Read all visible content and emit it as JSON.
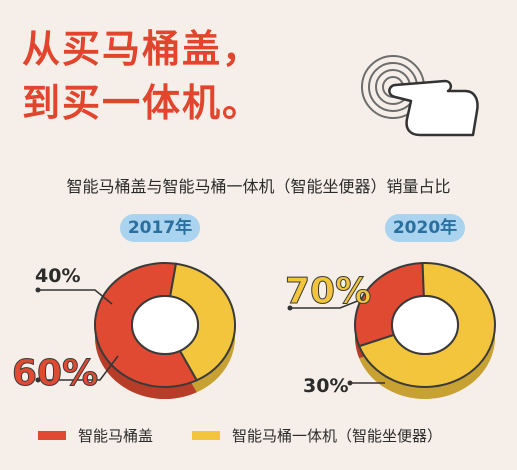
{
  "headline": {
    "line1": "从买马桶盖，",
    "line2": "到买一体机。"
  },
  "subtitle": "智能马桶盖与智能马桶一体机（智能坐便器）销量占比",
  "legend": [
    {
      "label": "智能马桶盖",
      "color": "#e04a32"
    },
    {
      "label": "智能马桶一体机（智能坐便器）",
      "color": "#f3c53d"
    }
  ],
  "colors": {
    "accent": "#e2452e",
    "cover": "#e04a32",
    "integrated": "#f3c53d",
    "badge": "#a9d3ee"
  },
  "chart_data": [
    {
      "type": "pie",
      "title": "2017年",
      "categories": [
        "智能马桶盖",
        "智能马桶一体机（智能坐便器）"
      ],
      "values": [
        60,
        40
      ],
      "labels": [
        "60%",
        "40%"
      ]
    },
    {
      "type": "pie",
      "title": "2020年",
      "categories": [
        "智能马桶盖",
        "智能马桶一体机（智能坐便器）"
      ],
      "values": [
        30,
        70
      ],
      "labels": [
        "30%",
        "70%"
      ]
    }
  ]
}
